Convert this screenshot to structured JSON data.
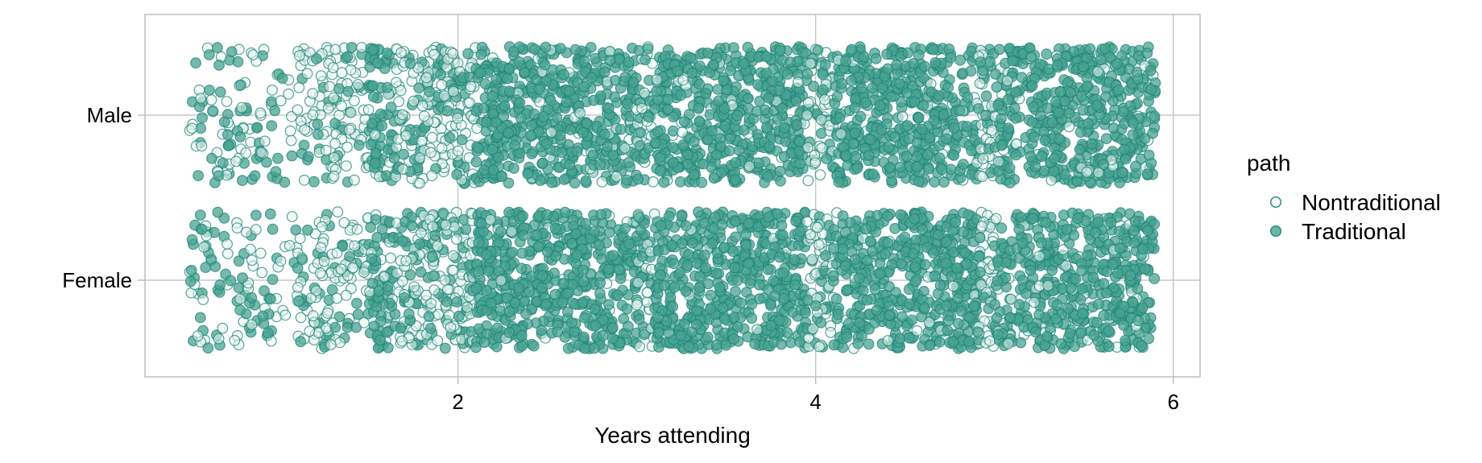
{
  "chart_data": {
    "type": "scatter",
    "title": "",
    "xlabel": "Years attending",
    "ylabel": "",
    "x_ticks": [
      2,
      4,
      6
    ],
    "xlim": [
      0.25,
      6.15
    ],
    "x_range_of_points": [
      0.5,
      5.9
    ],
    "y_categories": [
      "Female",
      "Male"
    ],
    "jitter": "horizontal and vertical jitter within each category band",
    "grid": true,
    "legend": {
      "title": "path",
      "placement": "right",
      "entries": [
        {
          "label": "Nontraditional",
          "style": "hollow"
        },
        {
          "label": "Traditional",
          "style": "filled"
        }
      ]
    },
    "colors": {
      "nontraditional_fill": "#e8f4f1",
      "traditional_fill": "#4aa392",
      "stroke": "#1f8577",
      "grid": "#c8c8c8",
      "panel_border": "#bdbdbd"
    },
    "density_profile": {
      "x_breaks": [
        0.5,
        1.0,
        1.1,
        1.5,
        1.65,
        2.05,
        2.1,
        3.0,
        3.1,
        3.95,
        4.1,
        4.9,
        5.0,
        5.2,
        5.9
      ],
      "relative_density": [
        0.35,
        0.15,
        0.55,
        0.9,
        0.85,
        0.95,
        1.0,
        0.9,
        1.0,
        0.8,
        1.0,
        0.95,
        0.85,
        1.0
      ],
      "traditional_share": [
        0.6,
        0.1,
        0.25,
        0.85,
        0.45,
        0.15,
        0.95,
        0.35,
        0.95,
        0.35,
        0.95,
        0.3,
        0.85,
        0.9
      ]
    }
  }
}
